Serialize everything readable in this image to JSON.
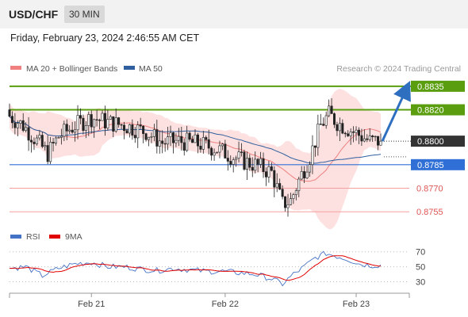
{
  "header": {
    "symbol": "USD/CHF",
    "timeframe": "30 MIN"
  },
  "datetime": "Friday, February 23, 2024 2:46:55 AM CET",
  "legend": {
    "ma20": {
      "label": "MA 20 + Bollinger Bands",
      "color": "#f08080"
    },
    "ma50": {
      "label": "MA 50",
      "color": "#2f5f9f"
    }
  },
  "copyright": "Research © 2024 Trading Central",
  "levels": [
    {
      "id": "r2",
      "value": 0.8835,
      "label": "0.8835",
      "kind": "resistance",
      "color": "#5a9e0f"
    },
    {
      "id": "r1",
      "value": 0.882,
      "label": "0.8820",
      "kind": "resistance",
      "color": "#5a9e0f"
    },
    {
      "id": "last",
      "value": 0.88,
      "label": "0.8800",
      "kind": "last-price",
      "color": "#333333"
    },
    {
      "id": "pivot",
      "value": 0.8785,
      "label": "0.8785",
      "kind": "pivot",
      "color": "#2f6fd6"
    },
    {
      "id": "s1",
      "value": 0.877,
      "label": "0.8770",
      "kind": "support",
      "color": "#e05555"
    },
    {
      "id": "s2",
      "value": 0.8755,
      "label": "0.8755",
      "kind": "support",
      "color": "#e05555"
    }
  ],
  "rsi_legend": {
    "rsi": {
      "label": "RSI",
      "color": "#4472c4"
    },
    "ma": {
      "label": "9MA",
      "color": "#e00000"
    }
  },
  "rsi_ticks": [
    "70",
    "50",
    "30"
  ],
  "x_ticks": [
    "Feb 21",
    "Feb 22",
    "Feb 23"
  ],
  "chart_data": {
    "type": "candlestick",
    "price_range": [
      0.8746,
      0.8842
    ],
    "rsi_range": [
      20,
      75
    ],
    "forecast": {
      "from": 0.88,
      "to": 0.8835
    },
    "anchors": [
      [
        0,
        0.8816
      ],
      [
        5,
        0.881
      ],
      [
        10,
        0.88
      ],
      [
        14,
        0.8792
      ],
      [
        18,
        0.8803
      ],
      [
        24,
        0.881
      ],
      [
        30,
        0.8815
      ],
      [
        36,
        0.8812
      ],
      [
        42,
        0.881
      ],
      [
        50,
        0.8806
      ],
      [
        56,
        0.8799
      ],
      [
        62,
        0.88
      ],
      [
        70,
        0.8798
      ],
      [
        76,
        0.8795
      ],
      [
        82,
        0.879
      ],
      [
        86,
        0.8787
      ],
      [
        90,
        0.8785
      ],
      [
        96,
        0.878
      ],
      [
        100,
        0.876
      ],
      [
        103,
        0.8762
      ],
      [
        106,
        0.8775
      ],
      [
        110,
        0.879
      ],
      [
        114,
        0.881
      ],
      [
        117,
        0.8817
      ],
      [
        120,
        0.8812
      ],
      [
        124,
        0.8808
      ],
      [
        128,
        0.8804
      ],
      [
        132,
        0.88
      ],
      [
        136,
        0.88
      ]
    ],
    "rsi_anchors": [
      [
        0,
        48
      ],
      [
        6,
        50
      ],
      [
        12,
        38
      ],
      [
        18,
        48
      ],
      [
        24,
        54
      ],
      [
        30,
        56
      ],
      [
        36,
        50
      ],
      [
        42,
        50
      ],
      [
        48,
        47
      ],
      [
        54,
        45
      ],
      [
        60,
        48
      ],
      [
        66,
        46
      ],
      [
        72,
        44
      ],
      [
        78,
        44
      ],
      [
        84,
        42
      ],
      [
        90,
        40
      ],
      [
        96,
        34
      ],
      [
        100,
        27
      ],
      [
        104,
        40
      ],
      [
        108,
        50
      ],
      [
        112,
        62
      ],
      [
        116,
        68
      ],
      [
        120,
        64
      ],
      [
        124,
        60
      ],
      [
        128,
        54
      ],
      [
        132,
        52
      ],
      [
        136,
        52
      ]
    ]
  }
}
